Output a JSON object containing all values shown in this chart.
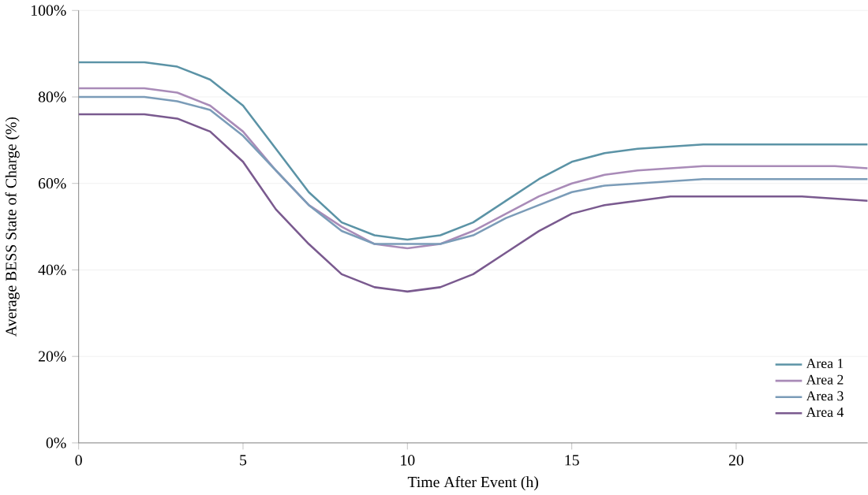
{
  "chart_data": {
    "type": "line",
    "xlabel": "Time After Event (h)",
    "ylabel": "Average BESS State of Charge (%)",
    "x": [
      0,
      1,
      2,
      3,
      4,
      5,
      6,
      7,
      8,
      9,
      10,
      11,
      12,
      13,
      14,
      15,
      16,
      17,
      18,
      19,
      20,
      21,
      22,
      23,
      24
    ],
    "series": [
      {
        "name": "Area 1",
        "color": "#5b93a6",
        "values": [
          88,
          88,
          88,
          87,
          84,
          78,
          68,
          58,
          51,
          48,
          47,
          48,
          51,
          56,
          61,
          65,
          67,
          68,
          68.5,
          69,
          69,
          69,
          69,
          69,
          69
        ]
      },
      {
        "name": "Area 2",
        "color": "#a98bb8",
        "values": [
          82,
          82,
          82,
          81,
          78,
          72,
          63,
          55,
          50,
          46,
          45,
          46,
          49,
          53,
          57,
          60,
          62,
          63,
          63.5,
          64,
          64,
          64,
          64,
          64,
          63.5
        ]
      },
      {
        "name": "Area 3",
        "color": "#7b9cb8",
        "values": [
          80,
          80,
          80,
          79,
          77,
          71,
          63,
          55,
          49,
          46,
          46,
          46,
          48,
          52,
          55,
          58,
          59.5,
          60,
          60.5,
          61,
          61,
          61,
          61,
          61,
          61
        ]
      },
      {
        "name": "Area 4",
        "color": "#7a5a8f",
        "values": [
          76,
          76,
          76,
          75,
          72,
          65,
          54,
          46,
          39,
          36,
          35,
          36,
          39,
          44,
          49,
          53,
          55,
          56,
          57,
          57,
          57,
          57,
          57,
          56.5,
          56
        ]
      }
    ],
    "xlim": [
      0,
      24
    ],
    "ylim": [
      0,
      100
    ],
    "xticks": [
      0,
      5,
      10,
      15,
      20
    ],
    "yticks": [
      {
        "value": 0,
        "label": "0%"
      },
      {
        "value": 20,
        "label": "20%"
      },
      {
        "value": 40,
        "label": "40%"
      },
      {
        "value": 60,
        "label": "60%"
      },
      {
        "value": 80,
        "label": "80%"
      },
      {
        "value": 100,
        "label": "100%"
      }
    ],
    "grid": "y",
    "legend": "bottom right",
    "marker": "none",
    "line_style": "solid"
  }
}
